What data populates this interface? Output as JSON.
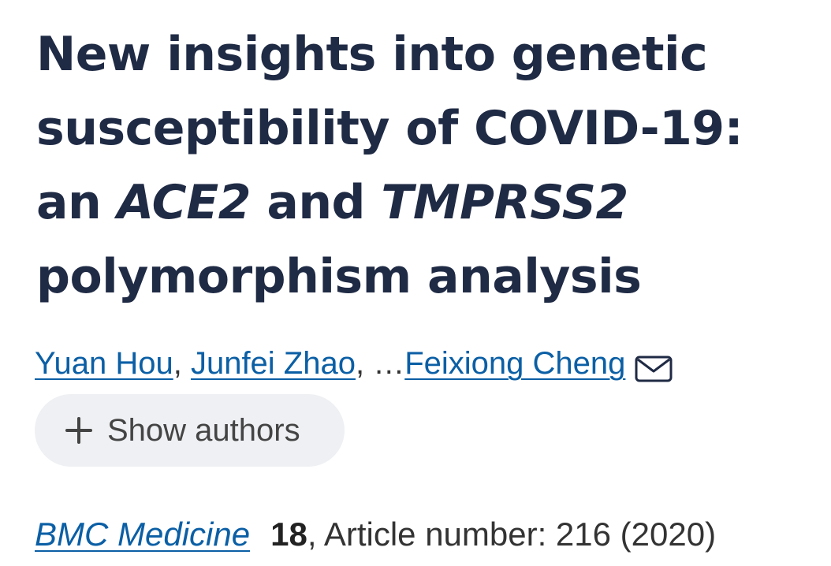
{
  "article": {
    "title_lines": [
      [
        "New insights into genetic"
      ],
      [
        "susceptibility of COVID-19:"
      ],
      [
        "an ",
        "ACE2",
        " and ",
        "TMPRSS2"
      ],
      [
        "polymorphism analysis"
      ]
    ],
    "title_line_1": "New insights into genetic",
    "title_line_2": "susceptibility of COVID-19:",
    "title_line_3a": "an ",
    "title_line_3b": "ACE2",
    "title_line_3c": " and ",
    "title_line_3d": "TMPRSS2",
    "title_line_4": "polymorphism analysis"
  },
  "authors": {
    "list": [
      "Yuan Hou",
      "Junfei Zhao",
      "Feixiong Cheng"
    ],
    "separator_1": ",",
    "separator_2": ", … ",
    "mail_icon": "envelope-icon"
  },
  "show_authors_button": {
    "label": "Show authors",
    "icon": "plus-icon"
  },
  "citation": {
    "journal": "BMC Medicine",
    "volume": "18",
    "rest": ", Article number: 216 (2020)"
  },
  "colors": {
    "title": "#1f2a44",
    "link": "#0b5fa5",
    "button_bg": "#eef0f3"
  }
}
